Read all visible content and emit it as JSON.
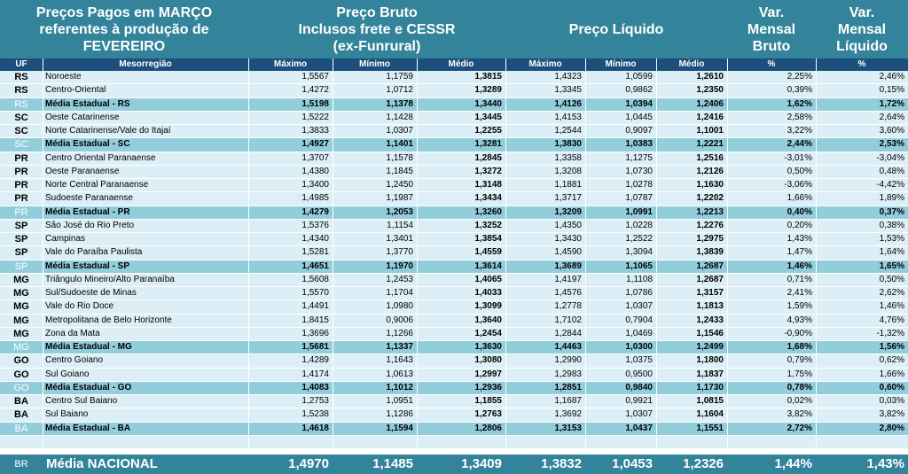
{
  "title": {
    "left": "Preços Pagos em MARÇO\nreferentes à produção de\nFEVEREIRO",
    "bruto": "Preço Bruto\nInclusos frete e CESSR\n(ex-Funrural)",
    "liquido": "Preço Líquido",
    "var_bruto": "Var.\nMensal\nBruto",
    "var_liquido": "Var.\nMensal\nLíquido"
  },
  "columns": {
    "uf": "UF",
    "mesorregiao": "Mesorregião",
    "b_max": "Máximo",
    "b_min": "Mínimo",
    "b_med": "Médio",
    "l_max": "Máximo",
    "l_min": "Mínimo",
    "l_med": "Médio",
    "pct1": "%",
    "pct2": "%"
  },
  "rows": [
    {
      "type": "normal",
      "uf": "RS",
      "meso": "Noroeste",
      "bmax": "1,5567",
      "bmin": "1,1759",
      "bmed": "1,3815",
      "lmax": "1,4323",
      "lmin": "1,0599",
      "lmed": "1,2610",
      "vb": "2,25%",
      "vl": "2,46%"
    },
    {
      "type": "normal",
      "uf": "RS",
      "meso": "Centro-Oriental",
      "bmax": "1,4272",
      "bmin": "1,0712",
      "bmed": "1,3289",
      "lmax": "1,3345",
      "lmin": "0,9862",
      "lmed": "1,2350",
      "vb": "0,39%",
      "vl": "0,15%"
    },
    {
      "type": "avg",
      "uf": "RS",
      "meso": "Média Estadual - RS",
      "bmax": "1,5198",
      "bmin": "1,1378",
      "bmed": "1,3440",
      "lmax": "1,4126",
      "lmin": "1,0394",
      "lmed": "1,2406",
      "vb": "1,62%",
      "vl": "1,72%"
    },
    {
      "type": "normal",
      "uf": "SC",
      "meso": "Oeste Catarinense",
      "bmax": "1,5222",
      "bmin": "1,1428",
      "bmed": "1,3445",
      "lmax": "1,4153",
      "lmin": "1,0445",
      "lmed": "1,2416",
      "vb": "2,58%",
      "vl": "2,64%"
    },
    {
      "type": "normal",
      "uf": "SC",
      "meso": "Norte Catarinense/Vale do Itajaí",
      "bmax": "1,3833",
      "bmin": "1,0307",
      "bmed": "1,2255",
      "lmax": "1,2544",
      "lmin": "0,9097",
      "lmed": "1,1001",
      "vb": "3,22%",
      "vl": "3,60%"
    },
    {
      "type": "avg",
      "uf": "SC",
      "meso": "Média Estadual - SC",
      "bmax": "1,4927",
      "bmin": "1,1401",
      "bmed": "1,3281",
      "lmax": "1,3830",
      "lmin": "1,0383",
      "lmed": "1,2221",
      "vb": "2,44%",
      "vl": "2,53%"
    },
    {
      "type": "normal",
      "uf": "PR",
      "meso": "Centro Oriental Paranaense",
      "bmax": "1,3707",
      "bmin": "1,1578",
      "bmed": "1,2845",
      "lmax": "1,3358",
      "lmin": "1,1275",
      "lmed": "1,2516",
      "vb": "-3,01%",
      "vl": "-3,04%"
    },
    {
      "type": "normal",
      "uf": "PR",
      "meso": "Oeste Paranaense",
      "bmax": "1,4380",
      "bmin": "1,1845",
      "bmed": "1,3272",
      "lmax": "1,3208",
      "lmin": "1,0730",
      "lmed": "1,2126",
      "vb": "0,50%",
      "vl": "0,48%"
    },
    {
      "type": "normal",
      "uf": "PR",
      "meso": "Norte Central Paranaense",
      "bmax": "1,3400",
      "bmin": "1,2450",
      "bmed": "1,3148",
      "lmax": "1,1881",
      "lmin": "1,0278",
      "lmed": "1,1630",
      "vb": "-3,06%",
      "vl": "-4,42%"
    },
    {
      "type": "normal",
      "uf": "PR",
      "meso": "Sudoeste Paranaense",
      "bmax": "1,4985",
      "bmin": "1,1987",
      "bmed": "1,3434",
      "lmax": "1,3717",
      "lmin": "1,0787",
      "lmed": "1,2202",
      "vb": "1,66%",
      "vl": "1,89%"
    },
    {
      "type": "avg",
      "uf": "PR",
      "meso": "Média Estadual - PR",
      "bmax": "1,4279",
      "bmin": "1,2053",
      "bmed": "1,3260",
      "lmax": "1,3209",
      "lmin": "1,0991",
      "lmed": "1,2213",
      "vb": "0,40%",
      "vl": "0,37%"
    },
    {
      "type": "normal",
      "uf": "SP",
      "meso": "São José do Rio Preto",
      "bmax": "1,5376",
      "bmin": "1,1154",
      "bmed": "1,3252",
      "lmax": "1,4350",
      "lmin": "1,0228",
      "lmed": "1,2276",
      "vb": "0,20%",
      "vl": "0,38%"
    },
    {
      "type": "normal",
      "uf": "SP",
      "meso": "Campinas",
      "bmax": "1,4340",
      "bmin": "1,3401",
      "bmed": "1,3854",
      "lmax": "1,3430",
      "lmin": "1,2522",
      "lmed": "1,2975",
      "vb": "1,43%",
      "vl": "1,53%"
    },
    {
      "type": "normal",
      "uf": "SP",
      "meso": "Vale do Paraíba Paulista",
      "bmax": "1,5281",
      "bmin": "1,3770",
      "bmed": "1,4559",
      "lmax": "1,4590",
      "lmin": "1,3094",
      "lmed": "1,3839",
      "vb": "1,47%",
      "vl": "1,64%"
    },
    {
      "type": "avg",
      "uf": "SP",
      "meso": "Média Estadual - SP",
      "bmax": "1,4651",
      "bmin": "1,1970",
      "bmed": "1,3614",
      "lmax": "1,3689",
      "lmin": "1,1065",
      "lmed": "1,2687",
      "vb": "1,46%",
      "vl": "1,65%"
    },
    {
      "type": "normal",
      "uf": "MG",
      "meso": "Triângulo Mineiro/Alto Paranaíba",
      "bmax": "1,5608",
      "bmin": "1,2453",
      "bmed": "1,4065",
      "lmax": "1,4197",
      "lmin": "1,1108",
      "lmed": "1,2687",
      "vb": "0,71%",
      "vl": "0,50%"
    },
    {
      "type": "normal",
      "uf": "MG",
      "meso": "Sul/Sudoeste de Minas",
      "bmax": "1,5570",
      "bmin": "1,1704",
      "bmed": "1,4033",
      "lmax": "1,4576",
      "lmin": "1,0786",
      "lmed": "1,3157",
      "vb": "2,41%",
      "vl": "2,62%"
    },
    {
      "type": "normal",
      "uf": "MG",
      "meso": "Vale do Rio Doce",
      "bmax": "1,4491",
      "bmin": "1,0980",
      "bmed": "1,3099",
      "lmax": "1,2778",
      "lmin": "1,0307",
      "lmed": "1,1813",
      "vb": "1,59%",
      "vl": "1,46%"
    },
    {
      "type": "normal",
      "uf": "MG",
      "meso": "Metropolitana de Belo Horizonte",
      "bmax": "1,8415",
      "bmin": "0,9006",
      "bmed": "1,3640",
      "lmax": "1,7102",
      "lmin": "0,7904",
      "lmed": "1,2433",
      "vb": "4,93%",
      "vl": "4,76%"
    },
    {
      "type": "normal",
      "uf": "MG",
      "meso": "Zona da Mata",
      "bmax": "1,3696",
      "bmin": "1,1266",
      "bmed": "1,2454",
      "lmax": "1,2844",
      "lmin": "1,0469",
      "lmed": "1,1546",
      "vb": "-0,90%",
      "vl": "-1,32%"
    },
    {
      "type": "avg",
      "uf": "MG",
      "meso": "Média Estadual - MG",
      "bmax": "1,5681",
      "bmin": "1,1337",
      "bmed": "1,3630",
      "lmax": "1,4463",
      "lmin": "1,0300",
      "lmed": "1,2499",
      "vb": "1,68%",
      "vl": "1,56%"
    },
    {
      "type": "normal",
      "uf": "GO",
      "meso": "Centro Goiano",
      "bmax": "1,4289",
      "bmin": "1,1643",
      "bmed": "1,3080",
      "lmax": "1,2990",
      "lmin": "1,0375",
      "lmed": "1,1800",
      "vb": "0,79%",
      "vl": "0,62%"
    },
    {
      "type": "normal",
      "uf": "GO",
      "meso": "Sul Goiano",
      "bmax": "1,4174",
      "bmin": "1,0613",
      "bmed": "1,2997",
      "lmax": "1,2983",
      "lmin": "0,9500",
      "lmed": "1,1837",
      "vb": "1,75%",
      "vl": "1,66%"
    },
    {
      "type": "avg",
      "uf": "GO",
      "meso": "Média Estadual - GO",
      "bmax": "1,4083",
      "bmin": "1,1012",
      "bmed": "1,2936",
      "lmax": "1,2851",
      "lmin": "0,9840",
      "lmed": "1,1730",
      "vb": "0,78%",
      "vl": "0,60%"
    },
    {
      "type": "normal",
      "uf": "BA",
      "meso": "Centro Sul Baiano",
      "bmax": "1,2753",
      "bmin": "1,0951",
      "bmed": "1,1855",
      "lmax": "1,1687",
      "lmin": "0,9921",
      "lmed": "1,0815",
      "vb": "0,02%",
      "vl": "0,03%"
    },
    {
      "type": "normal",
      "uf": "BA",
      "meso": "Sul Baiano",
      "bmax": "1,5238",
      "bmin": "1,1286",
      "bmed": "1,2763",
      "lmax": "1,3692",
      "lmin": "1,0307",
      "lmed": "1,1604",
      "vb": "3,82%",
      "vl": "3,82%"
    },
    {
      "type": "avg",
      "uf": "BA",
      "meso": "Média Estadual - BA",
      "bmax": "1,4618",
      "bmin": "1,1594",
      "bmed": "1,2806",
      "lmax": "1,3153",
      "lmin": "1,0437",
      "lmed": "1,1551",
      "vb": "2,72%",
      "vl": "2,80%"
    },
    {
      "type": "blank",
      "uf": "",
      "meso": "",
      "bmax": "",
      "bmin": "",
      "bmed": "",
      "lmax": "",
      "lmin": "",
      "lmed": "",
      "vb": "",
      "vl": ""
    }
  ],
  "footer": {
    "uf": "BR",
    "label": "Média NACIONAL",
    "bmax": "1,4970",
    "bmin": "1,1485",
    "bmed": "1,3409",
    "lmax": "1,3832",
    "lmin": "1,0453",
    "lmed": "1,2326",
    "vb": "1,44%",
    "vl": "1,43%"
  },
  "colors": {
    "title_band": "#33849a",
    "header_row": "#1d4f7c",
    "row_normal": "#ddeff6",
    "row_average": "#92cddc"
  }
}
